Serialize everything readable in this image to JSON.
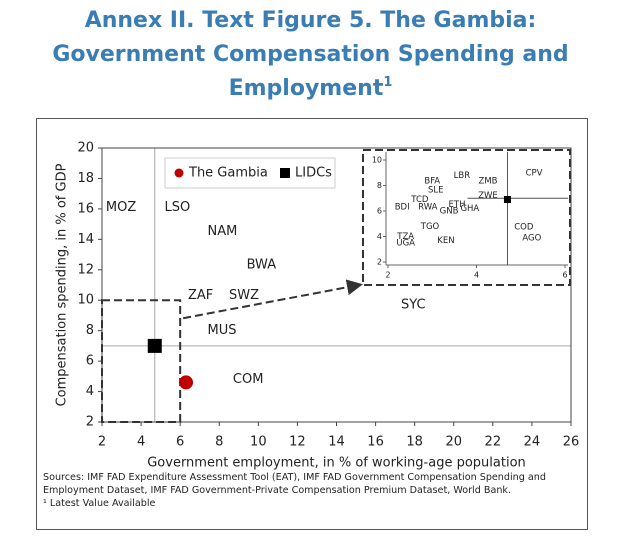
{
  "chart_data": {
    "type": "scatter",
    "title_lines": [
      "Annex II. Text Figure 5. The Gambia:",
      "Government Compensation Spending and",
      "Employment"
    ],
    "title_sup": "1",
    "xlabel": "Government employment, in % of working-age population",
    "ylabel": "Compensation spending, in % of GDP",
    "xlim": [
      2,
      26
    ],
    "ylim": [
      2,
      20
    ],
    "xticks": [
      2,
      4,
      6,
      8,
      10,
      12,
      14,
      16,
      18,
      20,
      22,
      24,
      26
    ],
    "yticks": [
      2,
      4,
      6,
      8,
      10,
      12,
      14,
      16,
      18,
      20
    ],
    "series": [
      {
        "name": "The Gambia",
        "color": "#c00000",
        "marker": "circle",
        "x": [
          6.3
        ],
        "y": [
          4.6
        ]
      },
      {
        "name": "LIDCs",
        "color": "#000000",
        "marker": "square",
        "x": [
          4.7
        ],
        "y": [
          7.0
        ]
      }
    ],
    "countries": {
      "labels": [
        "MOZ",
        "LSO",
        "NAM",
        "BWA",
        "ZAF",
        "SWZ",
        "MUS",
        "COM",
        "SYC"
      ],
      "x": [
        2.2,
        5.2,
        7.4,
        9.4,
        6.4,
        8.5,
        7.4,
        8.7,
        17.3
      ],
      "y": [
        16.1,
        16.1,
        14.5,
        12.3,
        10.3,
        10.3,
        8.0,
        4.8,
        9.7
      ]
    },
    "vline": 4.7,
    "hline": 7.0,
    "zoom_box": {
      "xlim": [
        2,
        6
      ],
      "ylim": [
        2,
        10
      ]
    },
    "inset": {
      "xlim": [
        2,
        6
      ],
      "ylim": [
        2,
        10
      ],
      "xticks": [
        2,
        4,
        6
      ],
      "yticks": [
        2,
        4,
        6,
        8,
        10
      ],
      "vline": 4.7,
      "hline": 7.0,
      "marker_x": [
        4.7
      ],
      "marker_y": [
        6.9
      ],
      "labels": [
        "BFA",
        "SLE",
        "LBR",
        "ZMB",
        "TCD",
        "BDI",
        "RWA",
        "GNB",
        "ETH",
        "GHA",
        "ZWE",
        "TGO",
        "TZA",
        "UGA",
        "KEN",
        "CPV",
        "COD",
        "AGO"
      ],
      "x": [
        3.0,
        3.08,
        3.67,
        4.26,
        2.72,
        2.32,
        2.9,
        3.38,
        3.56,
        3.85,
        4.26,
        2.95,
        2.4,
        2.4,
        3.31,
        5.3,
        5.07,
        5.25
      ],
      "y": [
        8.35,
        7.65,
        8.8,
        8.35,
        6.9,
        6.3,
        6.3,
        6.0,
        6.5,
        6.2,
        7.2,
        4.8,
        4.0,
        3.5,
        3.7,
        9.0,
        4.75,
        3.9
      ]
    },
    "legend": "upper left",
    "sources": "Sources: IMF FAD Expenditure Assessment Tool (EAT), IMF FAD Government Compensation Spending and Employment Dataset, IMF FAD Government-Private Compensation Premium Dataset, World Bank.",
    "footnote": "¹ Latest Value Available"
  }
}
